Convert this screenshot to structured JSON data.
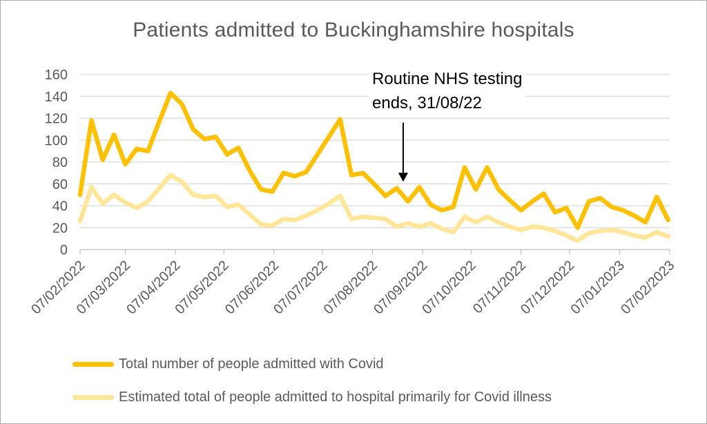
{
  "chart_data": {
    "type": "line",
    "title": "Patients admitted to Buckinghamshire hospitals",
    "xlabel": "",
    "ylabel": "",
    "ylim": [
      0,
      160
    ],
    "y_tick_step": 20,
    "y_tick_labels": [
      "0",
      "20",
      "40",
      "60",
      "80",
      "100",
      "120",
      "140",
      "160"
    ],
    "x_total_days": 365,
    "x_tick_labels": [
      "07/02/2022",
      "07/03/2022",
      "07/04/2022",
      "07/05/2022",
      "07/06/2022",
      "07/07/2022",
      "07/08/2022",
      "07/09/2022",
      "07/10/2022",
      "07/11/2022",
      "07/12/2022",
      "07/01/2023",
      "07/02/2023"
    ],
    "x_tick_day_offsets": [
      0,
      28,
      59,
      89,
      120,
      150,
      181,
      212,
      242,
      273,
      303,
      334,
      365
    ],
    "grid": true,
    "legend_position": "bottom",
    "categories": [
      "07/02/2022",
      "14/02/2022",
      "21/02/2022",
      "28/02/2022",
      "07/03/2022",
      "14/03/2022",
      "21/03/2022",
      "28/03/2022",
      "04/04/2022",
      "11/04/2022",
      "18/04/2022",
      "25/04/2022",
      "02/05/2022",
      "09/05/2022",
      "16/05/2022",
      "23/05/2022",
      "30/05/2022",
      "06/06/2022",
      "13/06/2022",
      "20/06/2022",
      "27/06/2022",
      "04/07/2022",
      "11/07/2022",
      "18/07/2022",
      "25/07/2022",
      "01/08/2022",
      "08/08/2022",
      "15/08/2022",
      "22/08/2022",
      "29/08/2022",
      "05/09/2022",
      "12/09/2022",
      "19/09/2022",
      "26/09/2022",
      "03/10/2022",
      "10/10/2022",
      "17/10/2022",
      "24/10/2022",
      "31/10/2022",
      "07/11/2022",
      "14/11/2022",
      "21/11/2022",
      "28/11/2022",
      "05/12/2022",
      "12/12/2022",
      "19/12/2022",
      "26/12/2022",
      "02/01/2023",
      "09/01/2023",
      "16/01/2023",
      "23/01/2023",
      "30/01/2023",
      "06/02/2023"
    ],
    "series": [
      {
        "name": "Total number of people admitted with Covid",
        "color": "#FFC000",
        "values": [
          50,
          118,
          82,
          105,
          78,
          92,
          90,
          117,
          143,
          133,
          110,
          101,
          103,
          87,
          93,
          72,
          55,
          53,
          70,
          67,
          71,
          87,
          103,
          119,
          68,
          70,
          60,
          49,
          56,
          44,
          57,
          41,
          36,
          39,
          75,
          55,
          75,
          55,
          45,
          36,
          44,
          51,
          34,
          38,
          20,
          44,
          47,
          39,
          36,
          31,
          25,
          48,
          27
        ]
      },
      {
        "name": "Estimated total of people admitted to hospital primarily for Covid illness",
        "color": "#FFE699",
        "values": [
          26,
          57,
          42,
          50,
          43,
          38,
          44,
          56,
          68,
          62,
          50,
          48,
          49,
          39,
          41,
          32,
          23,
          22,
          28,
          27,
          31,
          36,
          42,
          49,
          28,
          30,
          29,
          28,
          21,
          24,
          21,
          24,
          19,
          16,
          30,
          25,
          30,
          25,
          21,
          18,
          21,
          20,
          17,
          13,
          8,
          15,
          17,
          18,
          16,
          13,
          11,
          16,
          12
        ]
      }
    ],
    "annotation": {
      "line1": "Routine NHS testing",
      "line2": "ends, 31/08/22",
      "arrow_day": 200,
      "arrow_from_value": 116,
      "arrow_to_value": 62
    },
    "colors": {
      "gridline": "#D9D9D9",
      "axis": "#BFBFBF",
      "text": "#595959",
      "annotation": "#000000",
      "frame_border": "#ABABAB",
      "background": "#FFFFFF"
    }
  }
}
